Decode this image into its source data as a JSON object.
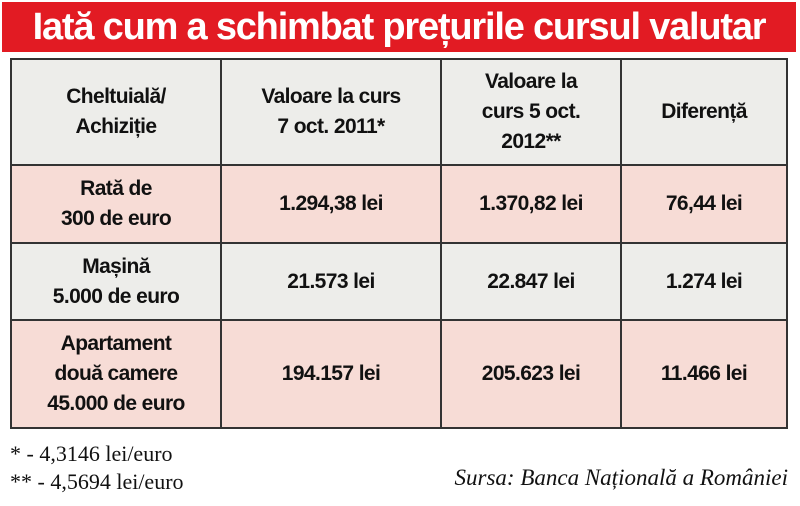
{
  "title": "Iată cum a schimbat prețurile cursul valutar",
  "colors": {
    "title_bg": "#e21b23",
    "row_pink": "#f7dcd6",
    "row_gray": "#ededea"
  },
  "table": {
    "headers": [
      [
        "Cheltuială/",
        "Achiziție"
      ],
      [
        "Valoare la curs",
        "7 oct. 2011*"
      ],
      [
        "Valoare la",
        "curs 5 oct.",
        "2012**"
      ],
      [
        "Diferență"
      ]
    ],
    "rows": [
      {
        "label": [
          "Rată de",
          "300 de euro"
        ],
        "values": [
          "1.294,38 lei",
          "1.370,82 lei",
          "76,44 lei"
        ]
      },
      {
        "label": [
          "Mașină",
          "5.000 de euro"
        ],
        "values": [
          "21.573 lei",
          "22.847 lei",
          "1.274 lei"
        ]
      },
      {
        "label": [
          "Apartament",
          "două camere",
          "45.000 de euro"
        ],
        "values": [
          "194.157 lei",
          "205.623 lei",
          "11.466 lei"
        ]
      }
    ]
  },
  "footnotes": [
    "* - 4,3146 lei/euro",
    "** - 4,5694 lei/euro"
  ],
  "source": "Sursa: Banca Națională a României"
}
